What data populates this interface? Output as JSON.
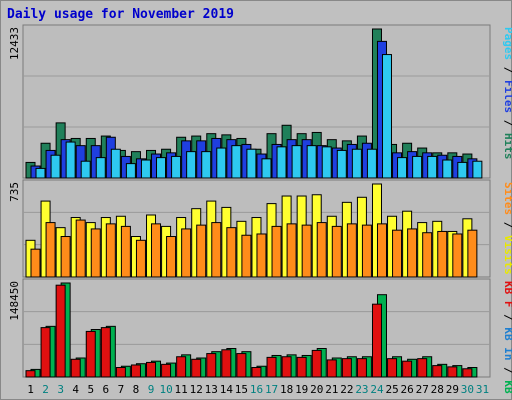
{
  "title": "Daily usage for November 2019",
  "colors": {
    "background": "#c0c0c0",
    "panel": "#bdbdbd",
    "gridline": "#9a9a9a",
    "hits": "#20805a",
    "files": "#1f3fe0",
    "pages": "#2ec9f0",
    "visits": "#ffff30",
    "sites": "#ff8c1a",
    "kbin": "#00b050",
    "kbout": "#e01010",
    "label_black": "#000000",
    "label_green": "#008080"
  },
  "chart_data": [
    {
      "type": "bar",
      "panel": "top",
      "ymax_label": "12433",
      "ymax": 12433,
      "categories": [
        "1",
        "2",
        "3",
        "4",
        "5",
        "6",
        "7",
        "8",
        "9",
        "10",
        "11",
        "12",
        "13",
        "14",
        "15",
        "16",
        "17",
        "18",
        "19",
        "20",
        "21",
        "22",
        "23",
        "24",
        "25",
        "26",
        "27",
        "28",
        "29",
        "30"
      ],
      "series": [
        {
          "name": "Hits",
          "values": [
            1300,
            2900,
            4600,
            3300,
            3300,
            3500,
            2300,
            2200,
            2300,
            2400,
            3400,
            3500,
            3700,
            3600,
            3300,
            2400,
            3700,
            4400,
            3700,
            3800,
            3200,
            3100,
            3500,
            12433,
            2800,
            2900,
            2500,
            2100,
            2100,
            2000
          ]
        },
        {
          "name": "Files",
          "values": [
            1000,
            2300,
            3200,
            2700,
            2700,
            3400,
            1800,
            1600,
            2000,
            2100,
            3100,
            3100,
            3300,
            3200,
            2800,
            2000,
            2800,
            3200,
            3200,
            2700,
            2500,
            2800,
            2900,
            11400,
            2100,
            2200,
            2100,
            1900,
            1800,
            1600
          ]
        },
        {
          "name": "Pages",
          "values": [
            800,
            1900,
            3000,
            1400,
            1700,
            2400,
            1200,
            1500,
            1700,
            1800,
            2200,
            2200,
            2500,
            2700,
            2400,
            1600,
            2600,
            2700,
            2700,
            2600,
            2300,
            2400,
            2400,
            10300,
            1700,
            1800,
            1800,
            1500,
            1300,
            1400
          ]
        }
      ]
    },
    {
      "type": "bar",
      "panel": "middle",
      "ymax_label": "735",
      "ymax": 735,
      "categories": [
        "1",
        "2",
        "3",
        "4",
        "5",
        "6",
        "7",
        "8",
        "9",
        "10",
        "11",
        "12",
        "13",
        "14",
        "15",
        "16",
        "17",
        "18",
        "19",
        "20",
        "21",
        "22",
        "23",
        "24",
        "25",
        "26",
        "27",
        "28",
        "29",
        "30"
      ],
      "series": [
        {
          "name": "Visits",
          "values": [
            290,
            600,
            390,
            470,
            430,
            470,
            480,
            320,
            490,
            400,
            470,
            540,
            600,
            550,
            440,
            470,
            580,
            640,
            640,
            650,
            480,
            590,
            630,
            735,
            480,
            520,
            430,
            440,
            360,
            460
          ]
        },
        {
          "name": "Sites",
          "values": [
            220,
            430,
            320,
            450,
            380,
            420,
            400,
            290,
            420,
            320,
            380,
            410,
            430,
            390,
            330,
            340,
            400,
            420,
            410,
            430,
            400,
            420,
            410,
            420,
            370,
            380,
            350,
            360,
            340,
            370
          ]
        }
      ]
    },
    {
      "type": "bar",
      "panel": "bottom",
      "ymax_label": "148450",
      "ymax": 148450,
      "categories": [
        "1",
        "2",
        "3",
        "4",
        "5",
        "6",
        "7",
        "8",
        "9",
        "10",
        "11",
        "12",
        "13",
        "14",
        "15",
        "16",
        "17",
        "18",
        "19",
        "20",
        "21",
        "22",
        "23",
        "24",
        "25",
        "26",
        "27",
        "28",
        "29",
        "30"
      ],
      "series": [
        {
          "name": "KB In",
          "values": [
            12000,
            80000,
            148450,
            30000,
            75000,
            80000,
            17000,
            21000,
            25000,
            22000,
            35000,
            30000,
            40000,
            45000,
            40000,
            17000,
            34000,
            35000,
            34000,
            45000,
            30000,
            32000,
            32000,
            130000,
            32000,
            28000,
            32000,
            20000,
            18000,
            15000
          ]
        },
        {
          "name": "KB Out",
          "values": [
            10000,
            78000,
            145000,
            28000,
            72000,
            78000,
            15000,
            19000,
            23000,
            20000,
            32000,
            28000,
            37000,
            43000,
            37000,
            15000,
            31000,
            32000,
            31000,
            42000,
            27000,
            29000,
            29000,
            115000,
            29000,
            25000,
            29000,
            18000,
            16000,
            13000
          ]
        }
      ]
    }
  ],
  "xaxis": {
    "labels": [
      "1",
      "2",
      "3",
      "4",
      "5",
      "6",
      "7",
      "8",
      "9",
      "10",
      "11",
      "12",
      "13",
      "14",
      "15",
      "16",
      "17",
      "18",
      "19",
      "20",
      "21",
      "22",
      "23",
      "24",
      "25",
      "26",
      "27",
      "28",
      "29",
      "30",
      "31"
    ],
    "weekend": [
      false,
      true,
      true,
      false,
      false,
      false,
      false,
      false,
      true,
      true,
      false,
      false,
      false,
      false,
      false,
      true,
      true,
      false,
      false,
      false,
      false,
      false,
      true,
      true,
      false,
      false,
      false,
      false,
      false,
      true,
      true
    ]
  },
  "right_labels": {
    "top": [
      {
        "text": "Pages",
        "color": "#2ec9f0"
      },
      {
        "text": " / ",
        "color": "#000000"
      },
      {
        "text": "Files",
        "color": "#1f3fe0"
      },
      {
        "text": " / ",
        "color": "#000000"
      },
      {
        "text": "Hits",
        "color": "#20805a"
      }
    ],
    "middle": [
      {
        "text": "Sites",
        "color": "#ff8c1a"
      },
      {
        "text": " / ",
        "color": "#000000"
      },
      {
        "text": "Visits",
        "color": "#e8e800"
      }
    ],
    "bottom": [
      {
        "text": "KB F",
        "color": "#e01010"
      },
      {
        "text": " / ",
        "color": "#000000"
      },
      {
        "text": "KB In",
        "color": "#1f7fd0"
      },
      {
        "text": " / ",
        "color": "#000000"
      },
      {
        "text": "KB Out",
        "color": "#00b050"
      }
    ]
  }
}
